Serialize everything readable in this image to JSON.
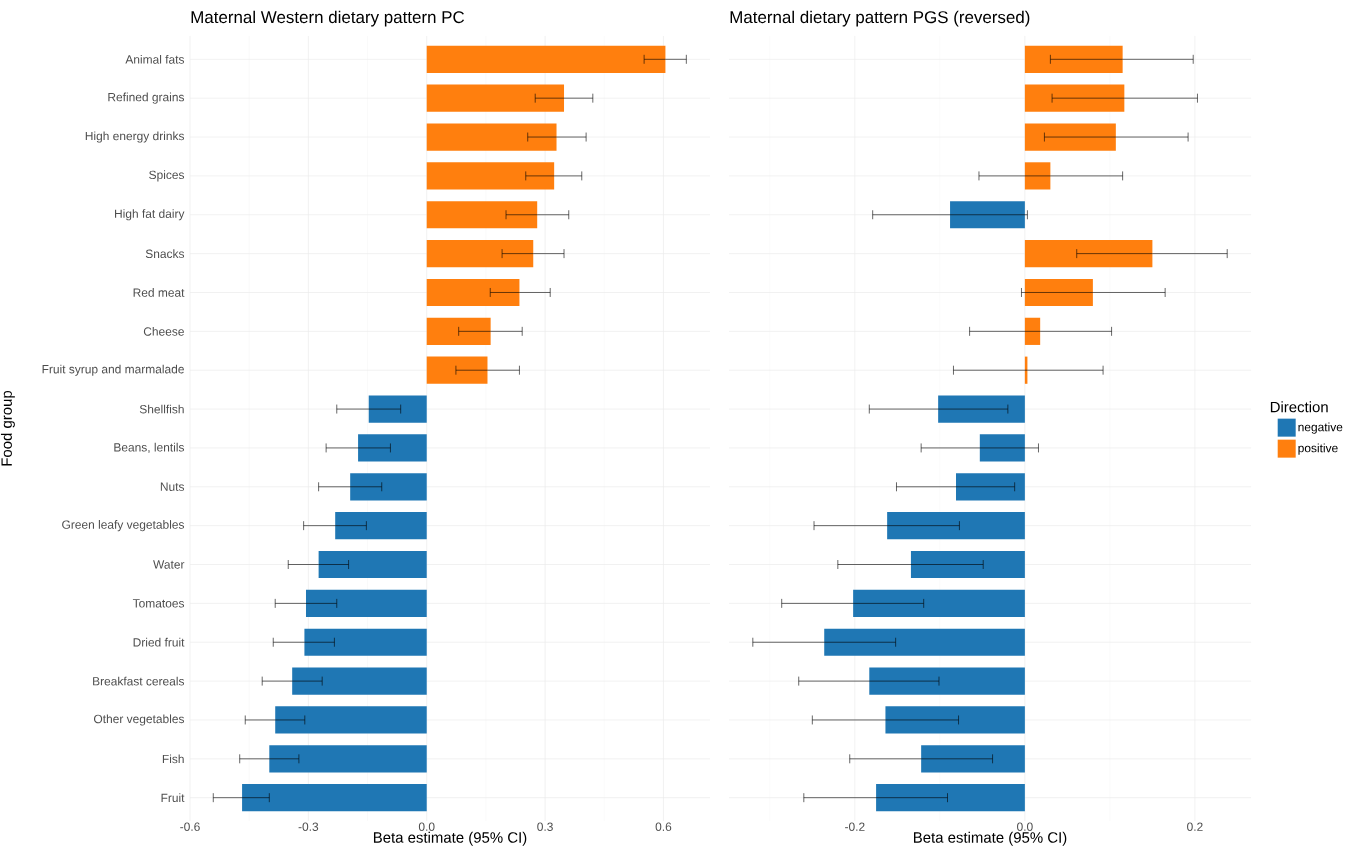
{
  "chart_data": [
    {
      "type": "bar",
      "orientation": "horizontal",
      "title": "Maternal Western dietary pattern PC",
      "xlabel": "Beta estimate (95% CI)",
      "ylabel": "Food group",
      "categories": [
        "Animal fats",
        "Refined grains",
        "High energy drinks",
        "Spices",
        "High fat dairy",
        "Snacks",
        "Red meat",
        "Cheese",
        "Fruit syrup and marmalade",
        "Shellfish",
        "Beans, lentils",
        "Nuts",
        "Green leafy vegetables",
        "Water",
        "Tomatoes",
        "Dried fruit",
        "Breakfast cereals",
        "Other vegetables",
        "Fish",
        "Fruit"
      ],
      "series": [
        {
          "color": "#1f77b4",
          "values": [
            null,
            null,
            null,
            null,
            null,
            null,
            null,
            null,
            null,
            -0.147,
            -0.174,
            -0.194,
            -0.232,
            -0.274,
            -0.306,
            -0.31,
            -0.341,
            -0.384,
            -0.399,
            -0.468
          ],
          "errors": [
            null,
            null,
            null,
            null,
            null,
            null,
            null,
            null,
            null,
            [
              -0.228,
              -0.066
            ],
            [
              -0.255,
              -0.092
            ],
            [
              -0.274,
              -0.114
            ],
            [
              -0.312,
              -0.153
            ],
            [
              -0.351,
              -0.198
            ],
            [
              -0.384,
              -0.228
            ],
            [
              -0.389,
              -0.234
            ],
            [
              -0.417,
              -0.265
            ],
            [
              -0.46,
              -0.309
            ],
            [
              -0.474,
              -0.324
            ],
            [
              -0.541,
              -0.399
            ]
          ]
        },
        {
          "color": "#ff7f0e",
          "values": [
            0.605,
            0.348,
            0.329,
            0.323,
            0.28,
            0.27,
            0.235,
            0.162,
            0.154,
            null,
            null,
            null,
            null,
            null,
            null,
            null,
            null,
            null,
            null,
            null
          ],
          "errors": [
            [
              0.551,
              0.658
            ],
            [
              0.275,
              0.421
            ],
            [
              0.256,
              0.404
            ],
            [
              0.251,
              0.393
            ],
            [
              0.201,
              0.36
            ],
            [
              0.191,
              0.348
            ],
            [
              0.161,
              0.313
            ],
            [
              0.081,
              0.242
            ],
            [
              0.074,
              0.235
            ],
            null,
            null,
            null,
            null,
            null,
            null,
            null,
            null,
            null,
            null,
            null
          ]
        }
      ],
      "xlim": [
        -0.6,
        0.718
      ],
      "xticks": [
        -0.6,
        -0.3,
        {
          "value": 0,
          "label": "0.0"
        },
        0.3,
        0.6
      ],
      "grid": true
    },
    {
      "type": "bar",
      "orientation": "horizontal",
      "title": "Maternal dietary pattern PGS (reversed)",
      "xlabel": "Beta estimate (95% CI)",
      "categories": [
        null,
        null,
        null,
        null,
        null,
        null,
        null,
        null,
        null,
        null,
        null,
        null,
        null,
        null,
        null,
        null,
        null,
        null,
        null,
        null
      ],
      "series": [
        {
          "name": "negative",
          "color": "#1f77b4",
          "values": [
            null,
            null,
            null,
            null,
            -0.088,
            null,
            null,
            null,
            null,
            -0.102,
            -0.053,
            -0.081,
            -0.162,
            -0.134,
            -0.202,
            -0.236,
            -0.183,
            -0.164,
            -0.122,
            -0.175
          ],
          "errors": [
            null,
            null,
            null,
            null,
            [
              -0.179,
              0.003
            ],
            null,
            null,
            null,
            null,
            [
              -0.183,
              -0.02
            ],
            [
              -0.122,
              0.016
            ],
            [
              -0.151,
              -0.012
            ],
            [
              -0.248,
              -0.077
            ],
            [
              -0.22,
              -0.049
            ],
            [
              -0.286,
              -0.119
            ],
            [
              -0.32,
              -0.152
            ],
            [
              -0.266,
              -0.101
            ],
            [
              -0.25,
              -0.078
            ],
            [
              -0.206,
              -0.038
            ],
            [
              -0.26,
              -0.091
            ]
          ]
        },
        {
          "name": "positive",
          "color": "#ff7f0e",
          "values": [
            0.115,
            0.117,
            0.107,
            0.03,
            null,
            0.15,
            0.08,
            0.018,
            0.003,
            null,
            null,
            null,
            null,
            null,
            null,
            null,
            null,
            null,
            null,
            null
          ],
          "errors": [
            [
              0.03,
              0.198
            ],
            [
              0.032,
              0.203
            ],
            [
              0.023,
              0.192
            ],
            [
              -0.054,
              0.115
            ],
            null,
            [
              0.061,
              0.238
            ],
            [
              -0.004,
              0.165
            ],
            [
              -0.065,
              0.102
            ],
            [
              -0.084,
              0.092
            ],
            null,
            null,
            null,
            null,
            null,
            null,
            null,
            null,
            null,
            null,
            null
          ]
        }
      ],
      "xlim": [
        -0.348,
        0.266
      ],
      "xticks": [
        -0.2,
        {
          "value": 0,
          "label": "0.0"
        },
        0.2
      ],
      "grid": true,
      "tick_labels": "x",
      "legend": "right",
      "legend_title": "Direction"
    }
  ]
}
